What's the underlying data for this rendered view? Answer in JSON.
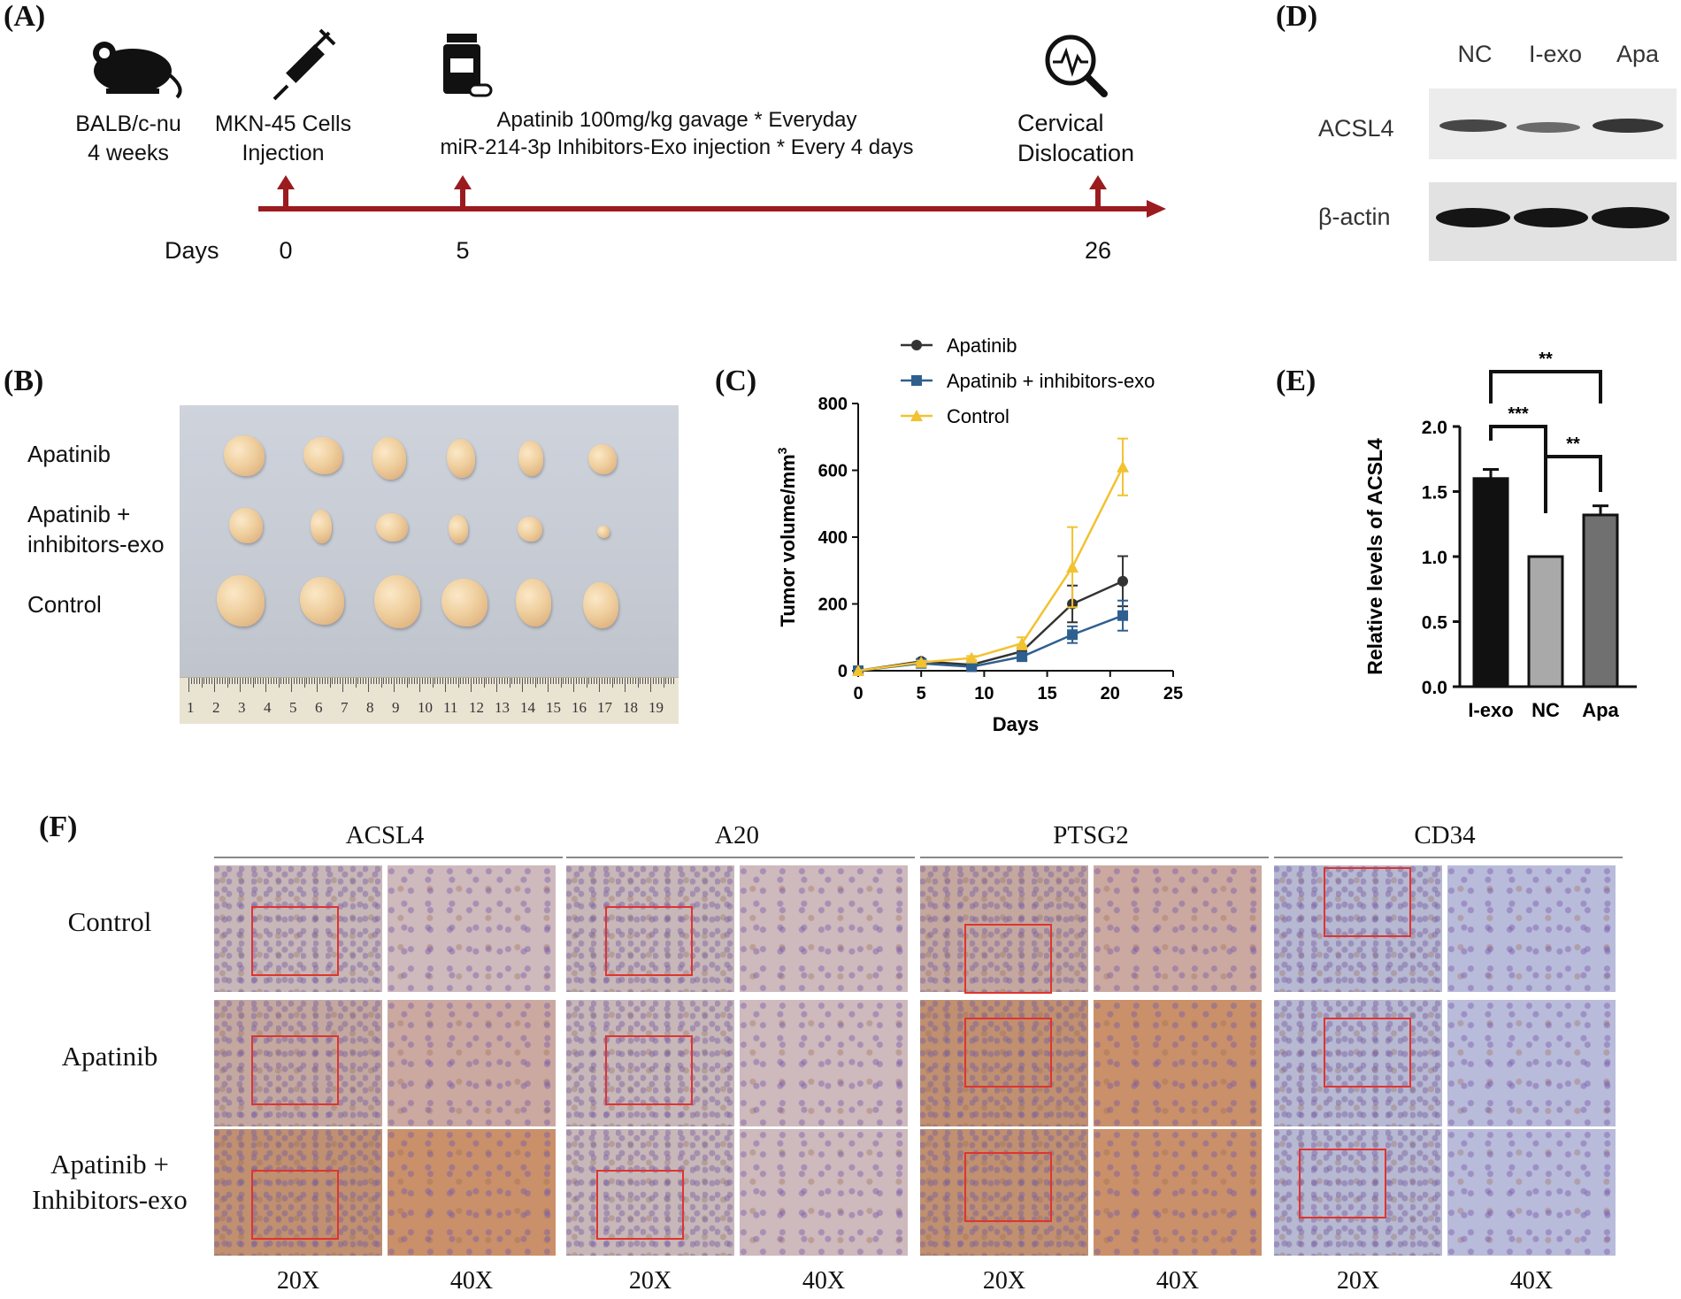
{
  "panels": {
    "a": "(A)",
    "b": "(B)",
    "c": "(C)",
    "d": "(D)",
    "e": "(E)",
    "f": "(F)"
  },
  "timeline": {
    "mouse": {
      "line1": "BALB/c-nu",
      "line2": "4 weeks"
    },
    "cells": {
      "line1": "MKN-45 Cells",
      "line2": "Injection"
    },
    "treatment": {
      "line1": "Apatinib 100mg/kg gavage * Everyday",
      "line2": "miR-214-3p Inhibitors-Exo injection * Every 4 days"
    },
    "end": {
      "line1": "Cervical",
      "line2": "Dislocation"
    },
    "days_label": "Days",
    "days": [
      "0",
      "5",
      "26"
    ],
    "icons": [
      "mouse-icon",
      "syringe-icon",
      "medicine-bottle-icon",
      "magnifier-pulse-icon"
    ]
  },
  "photo": {
    "rows": [
      "Apatinib",
      "Apatinib +",
      "inhibitors-exo",
      "Control"
    ],
    "ruler": [
      "1",
      "2",
      "3",
      "4",
      "5",
      "6",
      "7",
      "8",
      "9",
      "10",
      "11",
      "12",
      "13",
      "14",
      "15",
      "16",
      "17",
      "18",
      "19"
    ]
  },
  "western": {
    "lanes": [
      "NC",
      "I-exo",
      "Apa"
    ],
    "bands": [
      "ACSL4",
      "β-actin"
    ]
  },
  "chart_data": [
    {
      "type": "line",
      "title": "",
      "xlabel": "Days",
      "ylabel": "Tumor volume/mm",
      "ylabel_sup": "3",
      "xlim": [
        0,
        25
      ],
      "ylim": [
        0,
        800
      ],
      "xticks": [
        0,
        5,
        10,
        15,
        20,
        25
      ],
      "yticks": [
        0,
        200,
        400,
        600,
        800
      ],
      "x": [
        0,
        5,
        9,
        13,
        17,
        21
      ],
      "series": [
        {
          "name": "Apatinib",
          "color": "#333333",
          "marker": "circle",
          "values": [
            0,
            28,
            18,
            58,
            200,
            268
          ],
          "err": [
            0,
            6,
            5,
            12,
            55,
            75
          ]
        },
        {
          "name": "Apatinib + inhibitors-exo",
          "color": "#2f5f8f",
          "marker": "square",
          "values": [
            0,
            22,
            12,
            42,
            108,
            165
          ],
          "err": [
            0,
            5,
            4,
            10,
            25,
            45
          ]
        },
        {
          "name": "Control",
          "color": "#f2c230",
          "marker": "triangle",
          "values": [
            0,
            25,
            38,
            82,
            310,
            610
          ],
          "err": [
            0,
            5,
            6,
            18,
            120,
            85
          ]
        }
      ],
      "legend": "top"
    },
    {
      "type": "bar",
      "title": "",
      "xlabel": "",
      "ylabel": "Relative levels of ACSL4",
      "ylim": [
        0,
        2.0
      ],
      "yticks": [
        "0.0",
        "0.5",
        "1.0",
        "1.5",
        "2.0"
      ],
      "categories": [
        "I-exo",
        "NC",
        "Apa"
      ],
      "values": [
        1.6,
        1.0,
        1.32
      ],
      "err": [
        0.07,
        0.0,
        0.07
      ],
      "colors": [
        "#111111",
        "#a9a9a9",
        "#707070"
      ],
      "significance": [
        {
          "pair": [
            "I-exo",
            "Apa"
          ],
          "label": "**"
        },
        {
          "pair": [
            "I-exo",
            "NC"
          ],
          "label": "***"
        },
        {
          "pair": [
            "NC",
            "Apa"
          ],
          "label": "**"
        }
      ]
    }
  ],
  "ihc": {
    "columns": [
      "ACSL4",
      "A20",
      "PTSG2",
      "CD34"
    ],
    "rows": [
      {
        "line1": "Control",
        "line2": ""
      },
      {
        "line1": "Apatinib",
        "line2": ""
      },
      {
        "line1": "Apatinib +",
        "line2": "Inhibitors-exo"
      }
    ],
    "magnifications": [
      "20X",
      "40X"
    ]
  },
  "colors": {
    "timeline": "#9b1b1f",
    "zoom_box": "#e0342e"
  }
}
